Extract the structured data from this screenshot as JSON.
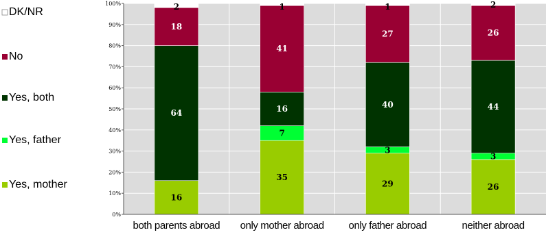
{
  "chart_data": {
    "type": "bar",
    "stacked": true,
    "percent_axis": true,
    "categories": [
      "both parents abroad",
      "only mother abroad",
      "only father abroad",
      "neither abroad"
    ],
    "series": [
      {
        "name": "Yes, mother",
        "color": "#99cc00",
        "values": [
          16,
          35,
          29,
          26
        ]
      },
      {
        "name": "Yes, father",
        "color": "#00ff33",
        "values": [
          0,
          7,
          3,
          3
        ]
      },
      {
        "name": "Yes, both",
        "color": "#003300",
        "values": [
          64,
          16,
          40,
          44
        ]
      },
      {
        "name": "No",
        "color": "#990033",
        "values": [
          18,
          41,
          27,
          26
        ]
      },
      {
        "name": "DK/NR",
        "color": "#ffffff",
        "values": [
          2,
          1,
          1,
          2
        ]
      }
    ],
    "data_labels": [
      [
        "16",
        "",
        "64",
        "18",
        "2"
      ],
      [
        "35",
        "7",
        "16",
        "41",
        "1"
      ],
      [
        "29",
        "3",
        "40",
        "27",
        "1"
      ],
      [
        "26",
        "3",
        "44",
        "26",
        "2"
      ]
    ],
    "y_ticks": [
      "0%",
      "10%",
      "20%",
      "30%",
      "40%",
      "50%",
      "60%",
      "70%",
      "80%",
      "90%",
      "100%"
    ],
    "ylim": [
      0,
      100
    ],
    "grid": true,
    "plot_background": "#dcdcdc",
    "legend_position": "left",
    "legend_order": [
      "DK/NR",
      "No",
      "Yes, both",
      "Yes, father",
      "Yes, mother"
    ]
  }
}
